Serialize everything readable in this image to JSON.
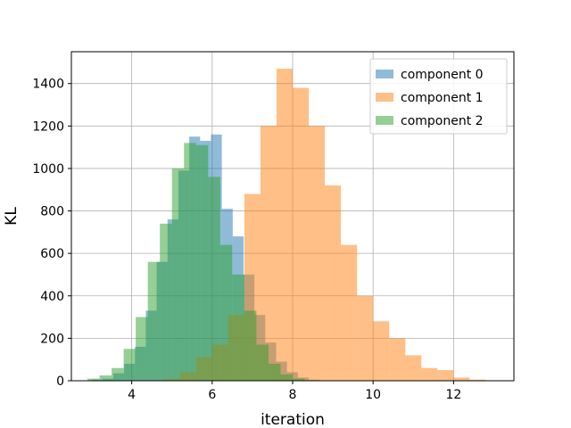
{
  "chart_data": {
    "type": "bar",
    "subtype": "histogram-overlay",
    "xlabel": "iteration",
    "ylabel": "KL",
    "xlim": [
      2.5,
      13.5
    ],
    "ylim": [
      0,
      1550
    ],
    "xticks": [
      "4",
      "6",
      "8",
      "10",
      "12"
    ],
    "yticks": [
      "0",
      "200",
      "400",
      "600",
      "800",
      "1000",
      "1200",
      "1400"
    ],
    "grid": true,
    "legend_position": "top-right",
    "series": [
      {
        "name": "component 0",
        "color": "#1f77b4",
        "alpha": 0.5,
        "bins": [
          [
            3.0,
            3.27,
            5
          ],
          [
            3.27,
            3.54,
            10
          ],
          [
            3.54,
            3.81,
            35
          ],
          [
            3.81,
            4.08,
            80
          ],
          [
            4.08,
            4.35,
            160
          ],
          [
            4.35,
            4.62,
            330
          ],
          [
            4.62,
            4.89,
            560
          ],
          [
            4.89,
            5.16,
            760
          ],
          [
            5.16,
            5.43,
            990
          ],
          [
            5.43,
            5.7,
            1150
          ],
          [
            5.7,
            5.97,
            1130
          ],
          [
            5.97,
            6.24,
            1160
          ],
          [
            6.24,
            6.51,
            810
          ],
          [
            6.51,
            6.78,
            680
          ],
          [
            6.78,
            7.05,
            500
          ],
          [
            7.05,
            7.32,
            310
          ],
          [
            7.32,
            7.59,
            180
          ],
          [
            7.59,
            7.86,
            90
          ],
          [
            7.86,
            8.13,
            40
          ],
          [
            8.13,
            8.4,
            15
          ],
          [
            8.4,
            8.67,
            5
          ]
        ]
      },
      {
        "name": "component 1",
        "color": "#ff7f0e",
        "alpha": 0.5,
        "bins": [
          [
            4.8,
            5.2,
            10
          ],
          [
            5.2,
            5.6,
            40
          ],
          [
            5.6,
            6.0,
            110
          ],
          [
            6.0,
            6.4,
            170
          ],
          [
            6.4,
            6.8,
            310
          ],
          [
            6.8,
            7.2,
            880
          ],
          [
            7.2,
            7.6,
            1200
          ],
          [
            7.6,
            8.0,
            1470
          ],
          [
            8.0,
            8.4,
            1380
          ],
          [
            8.4,
            8.8,
            1200
          ],
          [
            8.8,
            9.2,
            920
          ],
          [
            9.2,
            9.6,
            640
          ],
          [
            9.6,
            10.0,
            400
          ],
          [
            10.0,
            10.4,
            280
          ],
          [
            10.4,
            10.8,
            200
          ],
          [
            10.8,
            11.2,
            120
          ],
          [
            11.2,
            11.6,
            60
          ],
          [
            11.6,
            12.0,
            50
          ],
          [
            12.0,
            12.4,
            15
          ],
          [
            12.4,
            12.8,
            5
          ]
        ]
      },
      {
        "name": "component 2",
        "color": "#2ca02c",
        "alpha": 0.5,
        "bins": [
          [
            2.9,
            3.2,
            10
          ],
          [
            3.2,
            3.5,
            25
          ],
          [
            3.5,
            3.8,
            60
          ],
          [
            3.8,
            4.1,
            150
          ],
          [
            4.1,
            4.4,
            300
          ],
          [
            4.4,
            4.7,
            560
          ],
          [
            4.7,
            5.0,
            740
          ],
          [
            5.0,
            5.3,
            1000
          ],
          [
            5.3,
            5.6,
            1120
          ],
          [
            5.6,
            5.9,
            1110
          ],
          [
            5.9,
            6.2,
            960
          ],
          [
            6.2,
            6.5,
            640
          ],
          [
            6.5,
            6.8,
            500
          ],
          [
            6.8,
            7.1,
            330
          ],
          [
            7.1,
            7.4,
            170
          ],
          [
            7.4,
            7.7,
            80
          ],
          [
            7.7,
            8.0,
            30
          ],
          [
            8.0,
            8.3,
            10
          ]
        ]
      }
    ]
  }
}
